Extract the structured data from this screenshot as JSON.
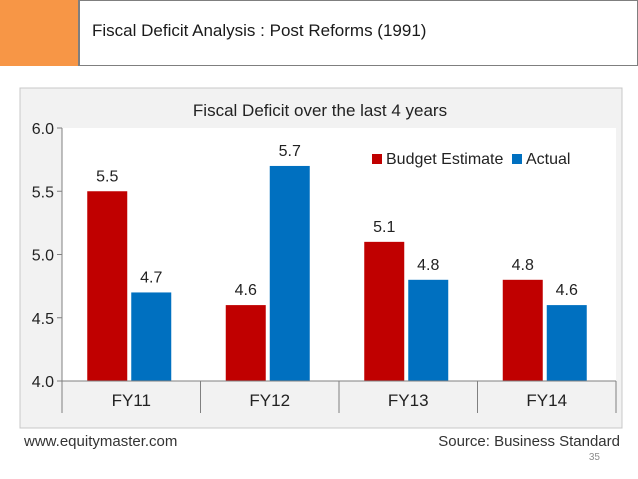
{
  "slide": {
    "title": "Fiscal Deficit Analysis : Post Reforms (1991)",
    "page_number": "35"
  },
  "chart_data": {
    "type": "bar",
    "title": "Fiscal Deficit over the last 4 years",
    "categories": [
      "FY11",
      "FY12",
      "FY13",
      "FY14"
    ],
    "series": [
      {
        "name": "Budget Estimate",
        "values": [
          5.5,
          4.6,
          5.1,
          4.8
        ],
        "color": "#c00000"
      },
      {
        "name": "Actual",
        "values": [
          4.7,
          5.7,
          4.8,
          4.6
        ],
        "color": "#0070c0"
      }
    ],
    "value_labels": {
      "Budget Estimate": [
        "5.5",
        "4.6",
        "5.1",
        "4.8"
      ],
      "Actual": [
        "4.7",
        "5.7",
        "4.8",
        "4.6"
      ]
    },
    "yticks": [
      "4.0",
      "4.5",
      "5.0",
      "5.5",
      "6.0"
    ],
    "ylim": [
      4.0,
      6.0
    ],
    "xlabel": "",
    "ylabel": "",
    "legend": "top-right",
    "footer_left": "www.equitymaster.com",
    "footer_right": "Source: Business Standard"
  }
}
